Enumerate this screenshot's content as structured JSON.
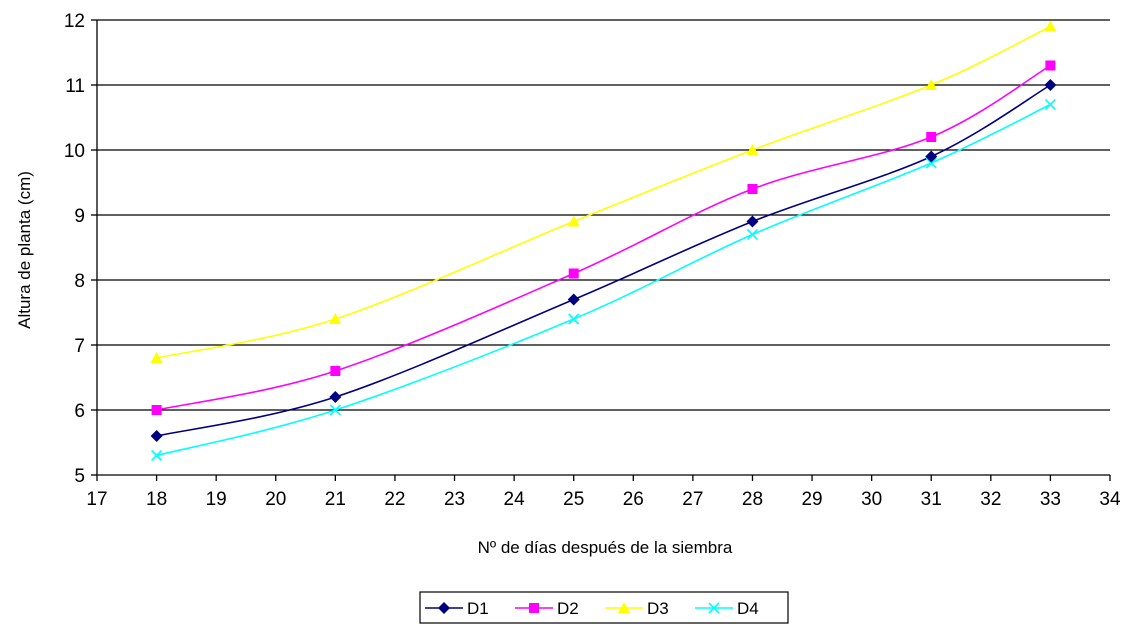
{
  "chart_data": {
    "type": "line",
    "title": "",
    "xlabel": "Nº de días después de la siembra",
    "ylabel": "Altura de planta (cm)",
    "xlim": [
      17,
      34
    ],
    "ylim": [
      5,
      12
    ],
    "x_ticks": [
      17,
      18,
      19,
      20,
      21,
      22,
      23,
      24,
      25,
      26,
      27,
      28,
      29,
      30,
      31,
      32,
      33,
      34
    ],
    "y_ticks": [
      5,
      6,
      7,
      8,
      9,
      10,
      11,
      12
    ],
    "grid": "horizontal",
    "legend_position": "bottom",
    "x": [
      18,
      21,
      25,
      28,
      31,
      33
    ],
    "series": [
      {
        "name": "D1",
        "values": [
          5.6,
          6.2,
          7.7,
          8.9,
          9.9,
          11.0
        ],
        "color": "#000080",
        "marker": "diamond"
      },
      {
        "name": "D2",
        "values": [
          6.0,
          6.6,
          8.1,
          9.4,
          10.2,
          11.3
        ],
        "color": "#ff00ff",
        "marker": "square"
      },
      {
        "name": "D3",
        "values": [
          6.8,
          7.4,
          8.9,
          10.0,
          11.0,
          11.9
        ],
        "color": "#ffff00",
        "marker": "triangle"
      },
      {
        "name": "D4",
        "values": [
          5.3,
          6.0,
          7.4,
          8.7,
          9.8,
          10.7
        ],
        "color": "#00ffff",
        "marker": "x"
      }
    ]
  }
}
